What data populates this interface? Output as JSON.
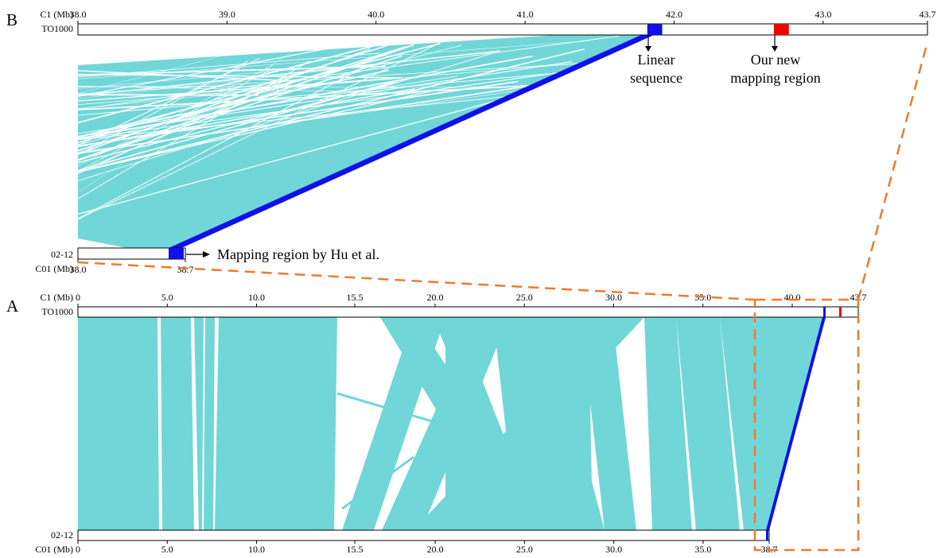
{
  "panel_b": {
    "letter": "B",
    "top_track": {
      "axis_label": "C1 (Mb)",
      "name": "TO1000",
      "start": 38.0,
      "end": 43.7,
      "ticks": [
        "38.0",
        "39.0",
        "40.0",
        "41.0",
        "42.0",
        "43.0",
        "43.7"
      ]
    },
    "bottom_track": {
      "name": "02-12",
      "axis_label": "C01 (Mb)",
      "start": 38.0,
      "end": 38.7,
      "ticks": [
        "38.0",
        "38.7"
      ]
    },
    "annotations": {
      "linear": [
        "Linear",
        "sequence"
      ],
      "new_region": [
        "Our new",
        "mapping region"
      ],
      "hu": "Mapping region by Hu et al."
    },
    "regions": {
      "linear_top": [
        41.82,
        41.92
      ],
      "new_region": [
        42.67,
        42.77
      ],
      "hu_bottom": [
        38.6,
        38.7
      ]
    }
  },
  "panel_a": {
    "letter": "A",
    "top_track": {
      "axis_label": "C1 (Mb)",
      "name": "TO1000",
      "start": 0,
      "end": 43.7,
      "ticks": [
        "0",
        "5.0",
        "10.0",
        "15.5",
        "20.0",
        "25.0",
        "30.0",
        "35.0",
        "40.0",
        "43.7"
      ]
    },
    "bottom_track": {
      "name": "02-12",
      "axis_label": "C01 (Mb)",
      "start": 0,
      "end": 38.7,
      "ticks": [
        "0",
        "5.0",
        "10.0",
        "15.5",
        "20.0",
        "25.0",
        "30.0",
        "35.0",
        "38.7"
      ]
    },
    "regions": {
      "blue_top": 41.8,
      "red_top": 42.7
    }
  },
  "colors": {
    "synteny": "#71d6d8",
    "blue": "#1010e8",
    "red": "#f00000",
    "dash": "#f07a2a",
    "track": "#ffffff"
  }
}
